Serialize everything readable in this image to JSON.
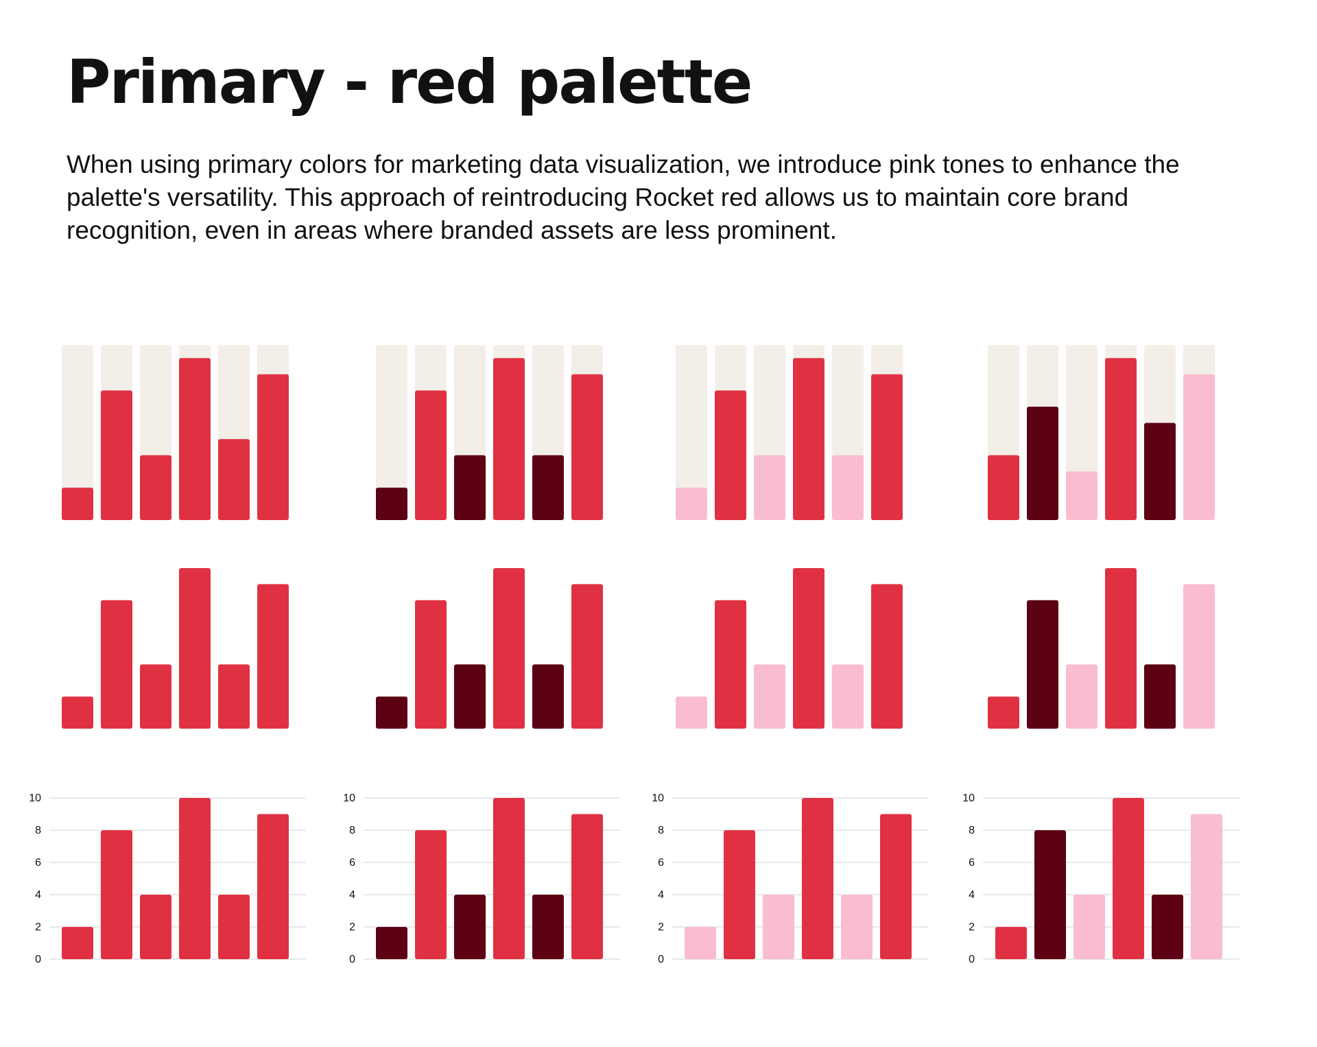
{
  "header": {
    "title": "Primary - red palette",
    "description": "When using primary colors for marketing data visualization, we introduce pink tones to enhance the palette's versatility. This approach of reintroducing Rocket red allows us to maintain core brand recognition, even in areas where branded assets are less prominent."
  },
  "palette": {
    "red": "#E03142",
    "dark": "#5C0013",
    "pink": "#F9BDCF",
    "track": "#F3EEE7",
    "gridline": "#D9D9D9"
  },
  "chart_data": [
    {
      "type": "bar",
      "style": "track",
      "values": [
        2,
        8,
        4,
        10,
        5,
        9
      ],
      "max": 10.8,
      "colors": [
        "red",
        "red",
        "red",
        "red",
        "red",
        "red"
      ]
    },
    {
      "type": "bar",
      "style": "track",
      "values": [
        2,
        8,
        4,
        10,
        4,
        9
      ],
      "max": 10.8,
      "colors": [
        "dark",
        "red",
        "dark",
        "red",
        "dark",
        "red"
      ]
    },
    {
      "type": "bar",
      "style": "track",
      "values": [
        2,
        8,
        4,
        10,
        4,
        9
      ],
      "max": 10.8,
      "colors": [
        "pink",
        "red",
        "pink",
        "red",
        "pink",
        "red"
      ]
    },
    {
      "type": "bar",
      "style": "track",
      "values": [
        4,
        7,
        3,
        10,
        6,
        9
      ],
      "max": 10.8,
      "colors": [
        "red",
        "dark",
        "pink",
        "red",
        "dark",
        "pink"
      ]
    },
    {
      "type": "bar",
      "style": "plain",
      "values": [
        2,
        8,
        4,
        10,
        4,
        9
      ],
      "max": 10,
      "colors": [
        "red",
        "red",
        "red",
        "red",
        "red",
        "red"
      ]
    },
    {
      "type": "bar",
      "style": "plain",
      "values": [
        2,
        8,
        4,
        10,
        4,
        9
      ],
      "max": 10,
      "colors": [
        "dark",
        "red",
        "dark",
        "red",
        "dark",
        "red"
      ]
    },
    {
      "type": "bar",
      "style": "plain",
      "values": [
        2,
        8,
        4,
        10,
        4,
        9
      ],
      "max": 10,
      "colors": [
        "pink",
        "red",
        "pink",
        "red",
        "pink",
        "red"
      ]
    },
    {
      "type": "bar",
      "style": "plain",
      "values": [
        2,
        8,
        4,
        10,
        4,
        9
      ],
      "max": 10,
      "colors": [
        "red",
        "dark",
        "pink",
        "red",
        "dark",
        "pink"
      ]
    },
    {
      "type": "bar",
      "style": "axis",
      "values": [
        2,
        8,
        4,
        10,
        4,
        9
      ],
      "ylim": [
        0,
        10
      ],
      "yticks": [
        "0",
        "2",
        "4",
        "6",
        "8",
        "10"
      ],
      "grid": true,
      "colors": [
        "red",
        "red",
        "red",
        "red",
        "red",
        "red"
      ]
    },
    {
      "type": "bar",
      "style": "axis",
      "values": [
        2,
        8,
        4,
        10,
        4,
        9
      ],
      "ylim": [
        0,
        10
      ],
      "yticks": [
        "0",
        "2",
        "4",
        "6",
        "8",
        "10"
      ],
      "grid": true,
      "colors": [
        "dark",
        "red",
        "dark",
        "red",
        "dark",
        "red"
      ]
    },
    {
      "type": "bar",
      "style": "axis",
      "values": [
        2,
        8,
        4,
        10,
        4,
        9
      ],
      "ylim": [
        0,
        10
      ],
      "yticks": [
        "0",
        "2",
        "4",
        "6",
        "8",
        "10"
      ],
      "grid": true,
      "colors": [
        "pink",
        "red",
        "pink",
        "red",
        "pink",
        "red"
      ]
    },
    {
      "type": "bar",
      "style": "axis",
      "values": [
        2,
        8,
        4,
        10,
        4,
        9
      ],
      "ylim": [
        0,
        10
      ],
      "yticks": [
        "0",
        "2",
        "4",
        "6",
        "8",
        "10"
      ],
      "grid": true,
      "colors": [
        "red",
        "dark",
        "pink",
        "red",
        "dark",
        "pink"
      ]
    }
  ]
}
